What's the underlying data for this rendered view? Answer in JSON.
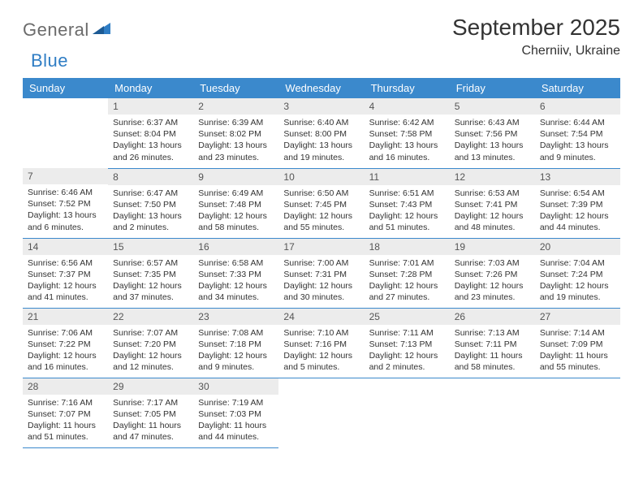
{
  "logo": {
    "part1": "General",
    "part2": "Blue"
  },
  "title": "September 2025",
  "location": "Cherniiv, Ukraine",
  "colors": {
    "header_bg": "#3b89cc",
    "header_fg": "#ffffff",
    "daynum_bg": "#ececec",
    "border": "#3b89cc",
    "logo_gray": "#6b6b6b",
    "logo_blue": "#2f7dc4"
  },
  "weekdays": [
    "Sunday",
    "Monday",
    "Tuesday",
    "Wednesday",
    "Thursday",
    "Friday",
    "Saturday"
  ],
  "weeks": [
    [
      null,
      {
        "n": "1",
        "sr": "Sunrise: 6:37 AM",
        "ss": "Sunset: 8:04 PM",
        "dl": "Daylight: 13 hours and 26 minutes."
      },
      {
        "n": "2",
        "sr": "Sunrise: 6:39 AM",
        "ss": "Sunset: 8:02 PM",
        "dl": "Daylight: 13 hours and 23 minutes."
      },
      {
        "n": "3",
        "sr": "Sunrise: 6:40 AM",
        "ss": "Sunset: 8:00 PM",
        "dl": "Daylight: 13 hours and 19 minutes."
      },
      {
        "n": "4",
        "sr": "Sunrise: 6:42 AM",
        "ss": "Sunset: 7:58 PM",
        "dl": "Daylight: 13 hours and 16 minutes."
      },
      {
        "n": "5",
        "sr": "Sunrise: 6:43 AM",
        "ss": "Sunset: 7:56 PM",
        "dl": "Daylight: 13 hours and 13 minutes."
      },
      {
        "n": "6",
        "sr": "Sunrise: 6:44 AM",
        "ss": "Sunset: 7:54 PM",
        "dl": "Daylight: 13 hours and 9 minutes."
      }
    ],
    [
      {
        "n": "7",
        "sr": "Sunrise: 6:46 AM",
        "ss": "Sunset: 7:52 PM",
        "dl": "Daylight: 13 hours and 6 minutes."
      },
      {
        "n": "8",
        "sr": "Sunrise: 6:47 AM",
        "ss": "Sunset: 7:50 PM",
        "dl": "Daylight: 13 hours and 2 minutes."
      },
      {
        "n": "9",
        "sr": "Sunrise: 6:49 AM",
        "ss": "Sunset: 7:48 PM",
        "dl": "Daylight: 12 hours and 58 minutes."
      },
      {
        "n": "10",
        "sr": "Sunrise: 6:50 AM",
        "ss": "Sunset: 7:45 PM",
        "dl": "Daylight: 12 hours and 55 minutes."
      },
      {
        "n": "11",
        "sr": "Sunrise: 6:51 AM",
        "ss": "Sunset: 7:43 PM",
        "dl": "Daylight: 12 hours and 51 minutes."
      },
      {
        "n": "12",
        "sr": "Sunrise: 6:53 AM",
        "ss": "Sunset: 7:41 PM",
        "dl": "Daylight: 12 hours and 48 minutes."
      },
      {
        "n": "13",
        "sr": "Sunrise: 6:54 AM",
        "ss": "Sunset: 7:39 PM",
        "dl": "Daylight: 12 hours and 44 minutes."
      }
    ],
    [
      {
        "n": "14",
        "sr": "Sunrise: 6:56 AM",
        "ss": "Sunset: 7:37 PM",
        "dl": "Daylight: 12 hours and 41 minutes."
      },
      {
        "n": "15",
        "sr": "Sunrise: 6:57 AM",
        "ss": "Sunset: 7:35 PM",
        "dl": "Daylight: 12 hours and 37 minutes."
      },
      {
        "n": "16",
        "sr": "Sunrise: 6:58 AM",
        "ss": "Sunset: 7:33 PM",
        "dl": "Daylight: 12 hours and 34 minutes."
      },
      {
        "n": "17",
        "sr": "Sunrise: 7:00 AM",
        "ss": "Sunset: 7:31 PM",
        "dl": "Daylight: 12 hours and 30 minutes."
      },
      {
        "n": "18",
        "sr": "Sunrise: 7:01 AM",
        "ss": "Sunset: 7:28 PM",
        "dl": "Daylight: 12 hours and 27 minutes."
      },
      {
        "n": "19",
        "sr": "Sunrise: 7:03 AM",
        "ss": "Sunset: 7:26 PM",
        "dl": "Daylight: 12 hours and 23 minutes."
      },
      {
        "n": "20",
        "sr": "Sunrise: 7:04 AM",
        "ss": "Sunset: 7:24 PM",
        "dl": "Daylight: 12 hours and 19 minutes."
      }
    ],
    [
      {
        "n": "21",
        "sr": "Sunrise: 7:06 AM",
        "ss": "Sunset: 7:22 PM",
        "dl": "Daylight: 12 hours and 16 minutes."
      },
      {
        "n": "22",
        "sr": "Sunrise: 7:07 AM",
        "ss": "Sunset: 7:20 PM",
        "dl": "Daylight: 12 hours and 12 minutes."
      },
      {
        "n": "23",
        "sr": "Sunrise: 7:08 AM",
        "ss": "Sunset: 7:18 PM",
        "dl": "Daylight: 12 hours and 9 minutes."
      },
      {
        "n": "24",
        "sr": "Sunrise: 7:10 AM",
        "ss": "Sunset: 7:16 PM",
        "dl": "Daylight: 12 hours and 5 minutes."
      },
      {
        "n": "25",
        "sr": "Sunrise: 7:11 AM",
        "ss": "Sunset: 7:13 PM",
        "dl": "Daylight: 12 hours and 2 minutes."
      },
      {
        "n": "26",
        "sr": "Sunrise: 7:13 AM",
        "ss": "Sunset: 7:11 PM",
        "dl": "Daylight: 11 hours and 58 minutes."
      },
      {
        "n": "27",
        "sr": "Sunrise: 7:14 AM",
        "ss": "Sunset: 7:09 PM",
        "dl": "Daylight: 11 hours and 55 minutes."
      }
    ],
    [
      {
        "n": "28",
        "sr": "Sunrise: 7:16 AM",
        "ss": "Sunset: 7:07 PM",
        "dl": "Daylight: 11 hours and 51 minutes."
      },
      {
        "n": "29",
        "sr": "Sunrise: 7:17 AM",
        "ss": "Sunset: 7:05 PM",
        "dl": "Daylight: 11 hours and 47 minutes."
      },
      {
        "n": "30",
        "sr": "Sunrise: 7:19 AM",
        "ss": "Sunset: 7:03 PM",
        "dl": "Daylight: 11 hours and 44 minutes."
      },
      null,
      null,
      null,
      null
    ]
  ]
}
